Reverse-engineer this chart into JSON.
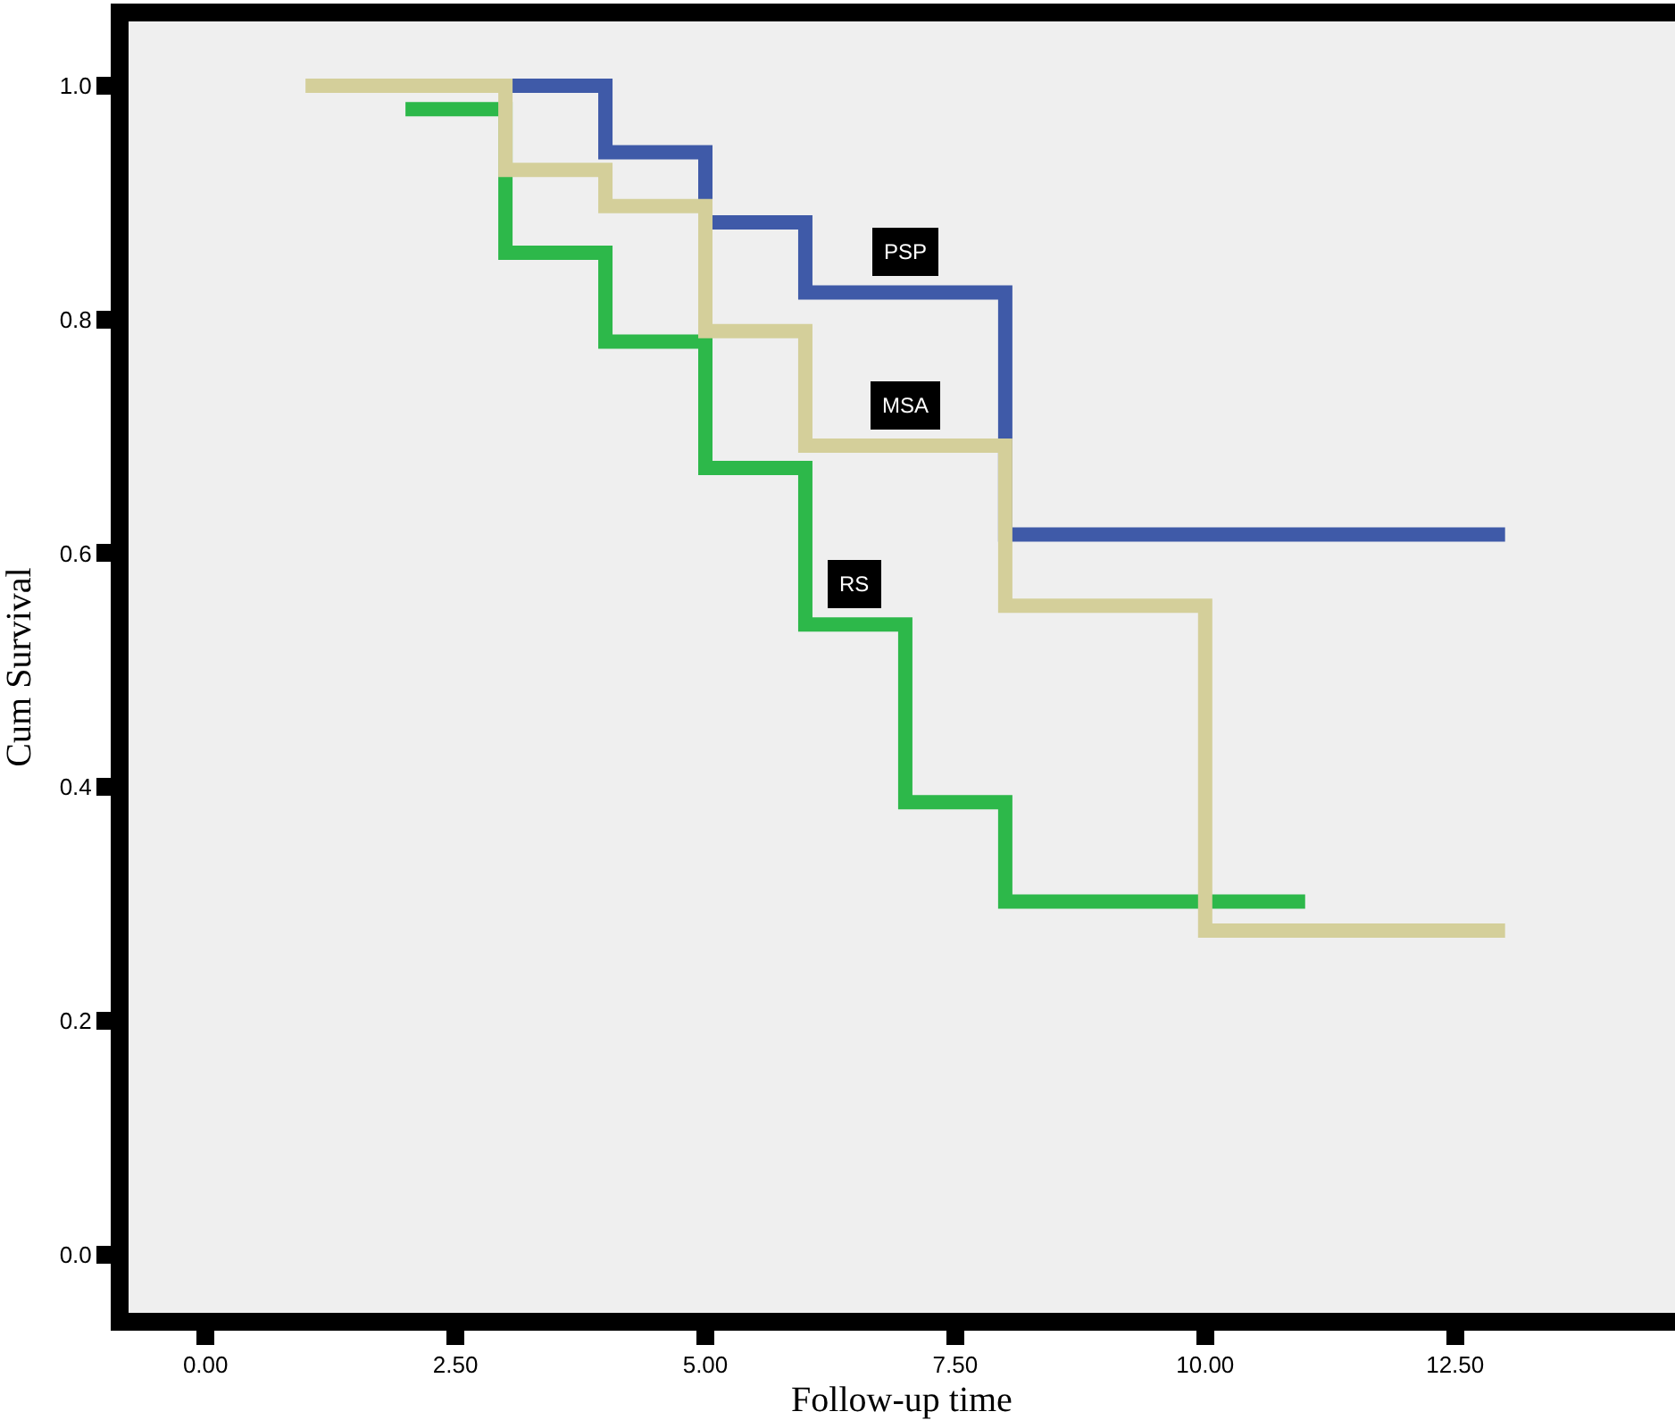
{
  "chart_data": {
    "type": "step",
    "xlabel": "Follow-up time",
    "ylabel": "Cum Survival",
    "xlim": [
      -0.77,
      14.7
    ],
    "ylim": [
      -0.05,
      1.055
    ],
    "xticks": [
      {
        "value": 0,
        "label": "0.00"
      },
      {
        "value": 2.5,
        "label": "2.50"
      },
      {
        "value": 5,
        "label": "5.00"
      },
      {
        "value": 7.5,
        "label": "7.50"
      },
      {
        "value": 10,
        "label": "10.00"
      },
      {
        "value": 12.5,
        "label": "12.50"
      }
    ],
    "yticks": [
      {
        "value": 0,
        "label": "0.0"
      },
      {
        "value": 0.2,
        "label": "0.2"
      },
      {
        "value": 0.4,
        "label": "0.4"
      },
      {
        "value": 0.6,
        "label": "0.6"
      },
      {
        "value": 0.8,
        "label": "0.8"
      },
      {
        "value": 1,
        "label": "1.0"
      }
    ],
    "grid": false,
    "legend": false,
    "line_style": "solid",
    "series": [
      {
        "name": "PSP",
        "color": "#3f5aa8",
        "x": [
          3,
          4,
          5,
          6,
          8,
          13
        ],
        "values": [
          1.0,
          0.943,
          0.883,
          0.823,
          0.616,
          0.616
        ]
      },
      {
        "name": "RS",
        "color": "#2db84a",
        "x": [
          2,
          3,
          4,
          5,
          6,
          7,
          8,
          11
        ],
        "values": [
          0.98,
          0.857,
          0.781,
          0.673,
          0.539,
          0.387,
          0.302,
          0.302
        ]
      },
      {
        "name": "MSA",
        "color": "#d4cf9a",
        "x": [
          1,
          3,
          4,
          5,
          6,
          8,
          10,
          13
        ],
        "values": [
          1.0,
          0.928,
          0.897,
          0.79,
          0.692,
          0.555,
          0.277,
          0.277
        ]
      }
    ]
  }
}
